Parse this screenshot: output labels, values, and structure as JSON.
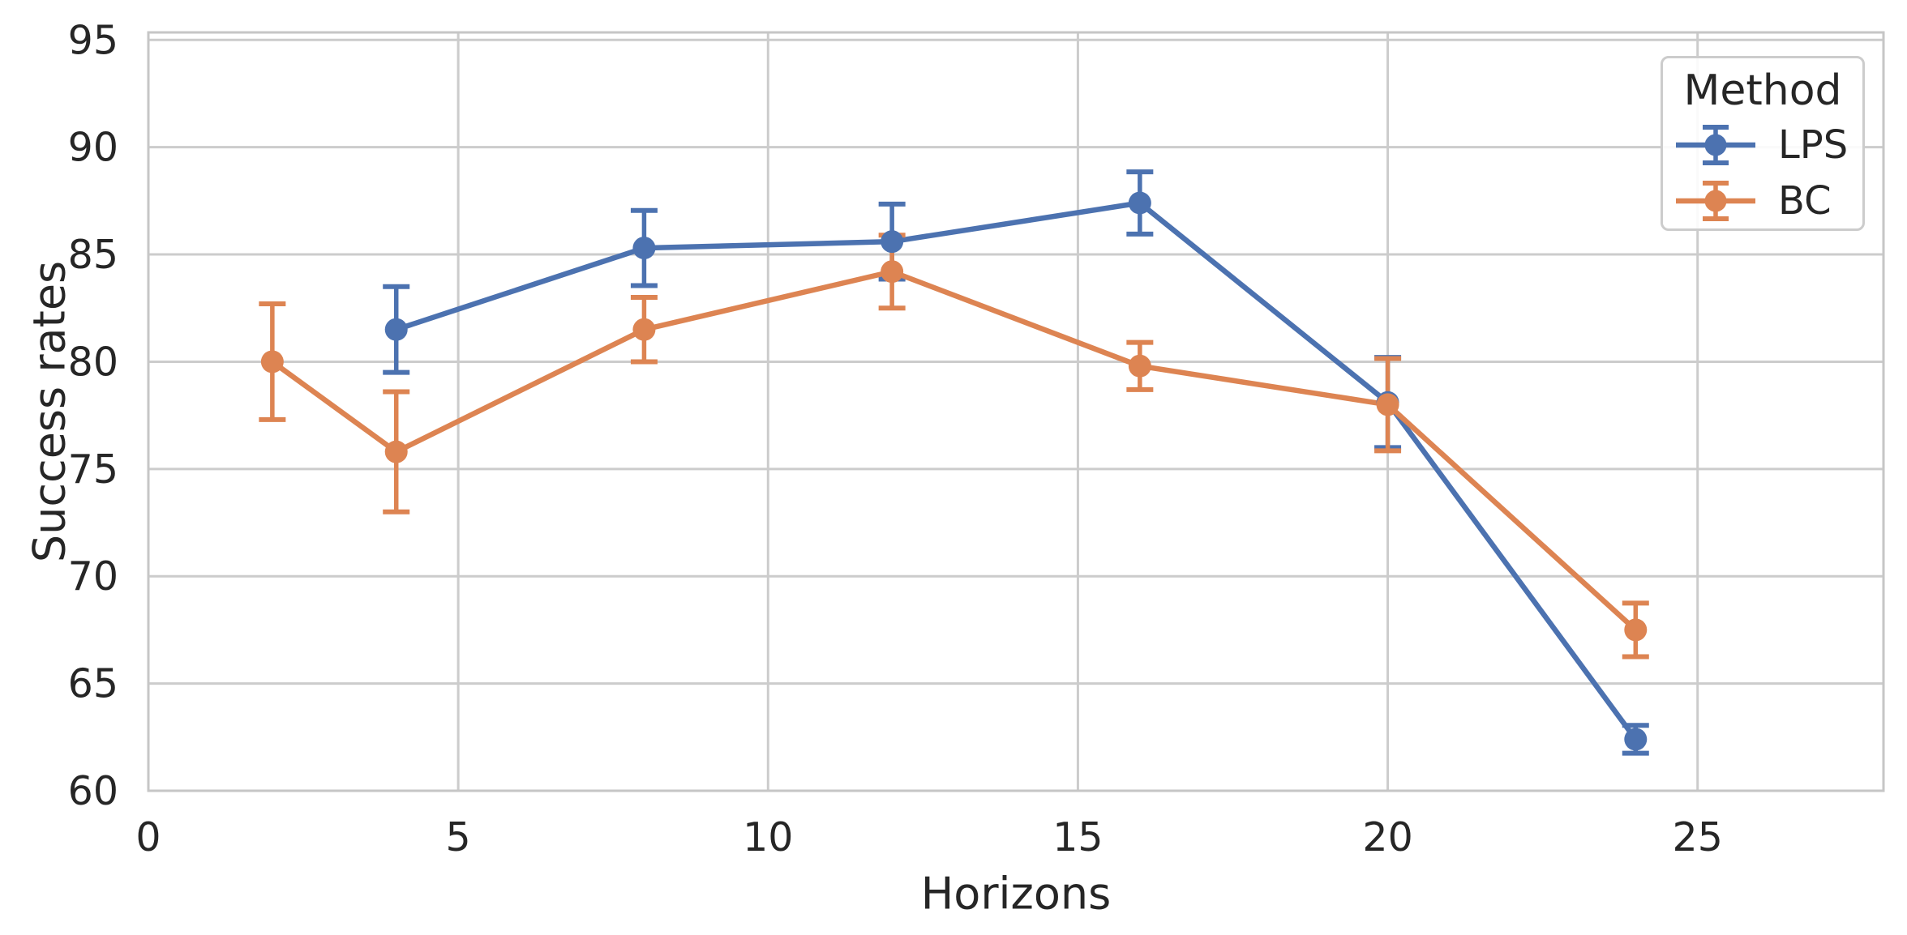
{
  "chart_data": {
    "type": "line",
    "title": "",
    "xlabel": "Horizons",
    "ylabel": "Success rates",
    "xlim": [
      0,
      28
    ],
    "ylim": [
      60,
      95.35
    ],
    "xticks": [
      0,
      5,
      10,
      15,
      20,
      25
    ],
    "yticks": [
      60,
      65,
      70,
      75,
      80,
      85,
      90,
      95
    ],
    "grid": true,
    "legend": {
      "title": "Method",
      "position": "upper right"
    },
    "series": [
      {
        "name": "LPS",
        "color": "#4C72B0",
        "x": [
          4,
          8,
          12,
          16,
          20,
          24
        ],
        "y": [
          81.5,
          85.3,
          85.6,
          87.4,
          78.1,
          62.4
        ],
        "yerr": [
          2.0,
          1.75,
          1.75,
          1.45,
          2.1,
          0.65
        ]
      },
      {
        "name": "BC",
        "color": "#DD8452",
        "x": [
          2,
          4,
          8,
          12,
          16,
          20,
          24
        ],
        "y": [
          80.0,
          75.8,
          81.5,
          84.2,
          79.8,
          78.0,
          67.5
        ],
        "yerr": [
          2.7,
          2.8,
          1.5,
          1.7,
          1.1,
          2.15,
          1.25
        ]
      }
    ],
    "colors": {
      "background": "#ffffff",
      "grid": "#cccccc",
      "spine": "#c6c6c6",
      "text": "#262626"
    }
  }
}
